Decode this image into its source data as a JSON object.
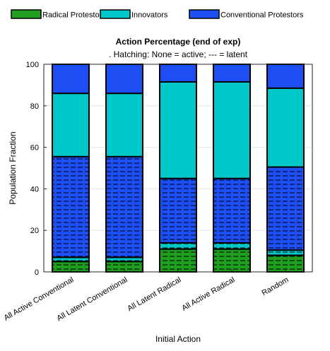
{
  "chart_data": {
    "type": "bar",
    "stacked": true,
    "title": "Action Percentage (end of exp)",
    "subtitle": ". Hatching: None = active; --- = latent",
    "xlabel": "Initial Action",
    "ylabel": "Population Fraction",
    "ylim": [
      0,
      100
    ],
    "yticks": [
      0,
      20,
      40,
      60,
      80,
      100
    ],
    "grid": true,
    "legend_position": "top",
    "legend_order": [
      "Radical Protestors",
      "Innovators",
      "Conventional Protestors"
    ],
    "categories": [
      "All Active Conventional",
      "All Latent Conventional",
      "All Latent Radical",
      "All Active Radical",
      "Random"
    ],
    "series": [
      {
        "name": "Radical Protestors",
        "state": "latent",
        "color": "#1f9e1f",
        "values": [
          5,
          5,
          11,
          11,
          8
        ]
      },
      {
        "name": "Innovators",
        "state": "latent",
        "color": "#00c8c8",
        "values": [
          2,
          2,
          3,
          3,
          2.5
        ]
      },
      {
        "name": "Conventional Protestors",
        "state": "latent",
        "color": "#1e4ff5",
        "values": [
          48.5,
          48.5,
          31,
          31,
          40
        ]
      },
      {
        "name": "Radical Protestors",
        "state": "active",
        "color": "#1f9e1f",
        "values": [
          0,
          0,
          0,
          0,
          0
        ]
      },
      {
        "name": "Innovators",
        "state": "active",
        "color": "#00c8c8",
        "values": [
          30.5,
          30.5,
          46.5,
          46.5,
          38
        ]
      },
      {
        "name": "Conventional Protestors",
        "state": "active",
        "color": "#1e4ff5",
        "values": [
          14,
          14,
          8.5,
          8.5,
          11.5
        ]
      }
    ]
  }
}
